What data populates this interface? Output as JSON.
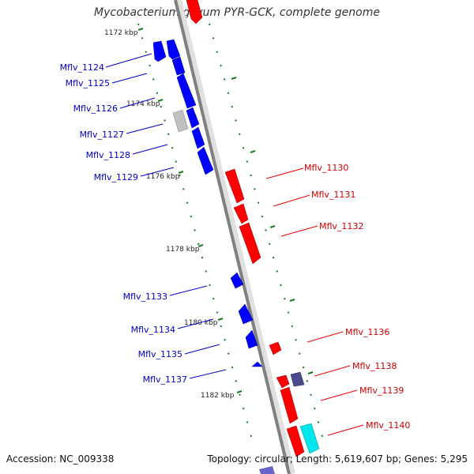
{
  "title": "Mycobacterium gilvum PYR-GCK, complete genome",
  "footer": {
    "accession": "Accession: NC_009338",
    "topology": "Topology: circular; Length: 5,619,607 bp; Genes: 5,295"
  },
  "colors": {
    "forward": "#ff0000",
    "reverse": "#0000ff",
    "gray_gene": "#c0c0c0",
    "slate_gene": "#4a4a8c",
    "cyan_gene": "#00e5ee",
    "tick": "#1a7a1a"
  },
  "kbp_labels": [
    "1172 kbp",
    "1174 kbp",
    "1176 kbp",
    "1178 kbp",
    "1180 kbp",
    "1182 kbp"
  ],
  "left_genes": [
    "Mflv_1124",
    "Mflv_1125",
    "Mflv_1126",
    "Mflv_1127",
    "Mflv_1128",
    "Mflv_1129",
    "Mflv_1133",
    "Mflv_1134",
    "Mflv_1135",
    "Mflv_1137"
  ],
  "right_genes": [
    "Mflv_1130",
    "Mflv_1131",
    "Mflv_1132",
    "Mflv_1136",
    "Mflv_1138",
    "Mflv_1139",
    "Mflv_1140"
  ]
}
